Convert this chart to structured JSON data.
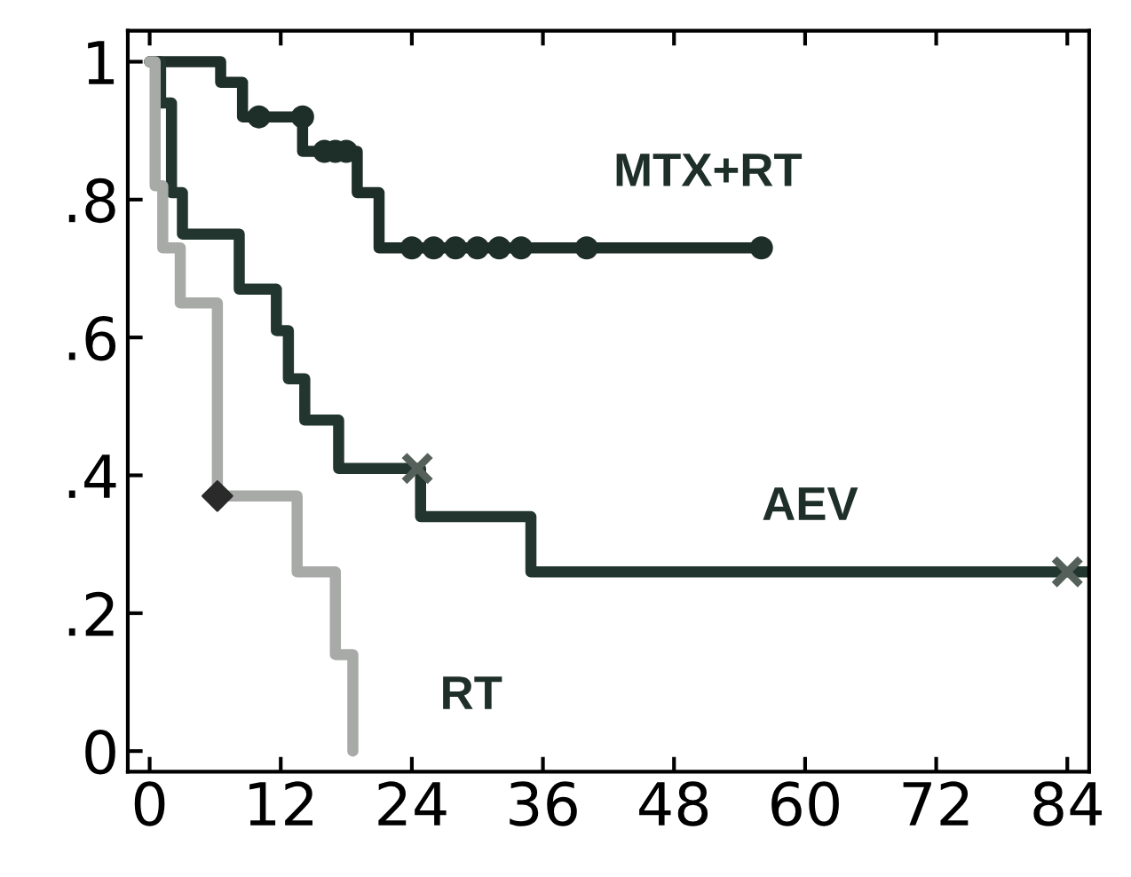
{
  "chart_data": {
    "type": "step",
    "xlim": [
      -2,
      86
    ],
    "ylim": [
      -0.03,
      1.045
    ],
    "xticks": [
      0,
      12,
      24,
      36,
      48,
      60,
      72,
      84
    ],
    "yticks": [
      {
        "value": 0,
        "label": "0"
      },
      {
        "value": 0.2,
        "label": ".2"
      },
      {
        "value": 0.4,
        "label": ".4"
      },
      {
        "value": 0.6,
        "label": ".6"
      },
      {
        "value": 0.8,
        "label": ".8"
      },
      {
        "value": 1,
        "label": "1"
      }
    ],
    "grid": false,
    "series": [
      {
        "name": "MTX+RT",
        "color": "#1e2e28",
        "x": [
          0,
          6.5,
          8.5,
          14,
          19,
          21,
          56
        ],
        "values": [
          1,
          0.97,
          0.92,
          0.87,
          0.81,
          0.73,
          0.73
        ]
      },
      {
        "name": "AEV",
        "color": "#22362f",
        "x": [
          0,
          1,
          2,
          3,
          8.2,
          11.6,
          12.7,
          14.2,
          17.3,
          24.8,
          34.9,
          86
        ],
        "values": [
          1,
          0.94,
          0.81,
          0.75,
          0.67,
          0.61,
          0.54,
          0.48,
          0.41,
          0.34,
          0.26,
          0.26
        ]
      },
      {
        "name": "RT",
        "color": "#a8aaa8",
        "x": [
          0,
          0.5,
          1.2,
          2.8,
          6.2,
          13.5,
          17,
          18.6
        ],
        "values": [
          1,
          0.82,
          0.73,
          0.65,
          0.37,
          0.26,
          0.14,
          0
        ]
      },
      {
        "type": "scatter",
        "marker": "circle",
        "color": "#1e2e28",
        "x": [
          10,
          14,
          16,
          17,
          18,
          24,
          26,
          28,
          30,
          32,
          34,
          40,
          56
        ],
        "values": [
          0.92,
          0.92,
          0.87,
          0.87,
          0.87,
          0.73,
          0.73,
          0.73,
          0.73,
          0.73,
          0.73,
          0.73,
          0.73
        ]
      },
      {
        "type": "scatter",
        "marker": "cross",
        "color": "#56605b",
        "x": [
          24.5,
          84
        ],
        "values": [
          0.41,
          0.26
        ]
      },
      {
        "type": "scatter",
        "marker": "diamond",
        "color": "#2a2a2a",
        "x": [
          6.2
        ],
        "values": [
          0.37
        ]
      }
    ]
  }
}
